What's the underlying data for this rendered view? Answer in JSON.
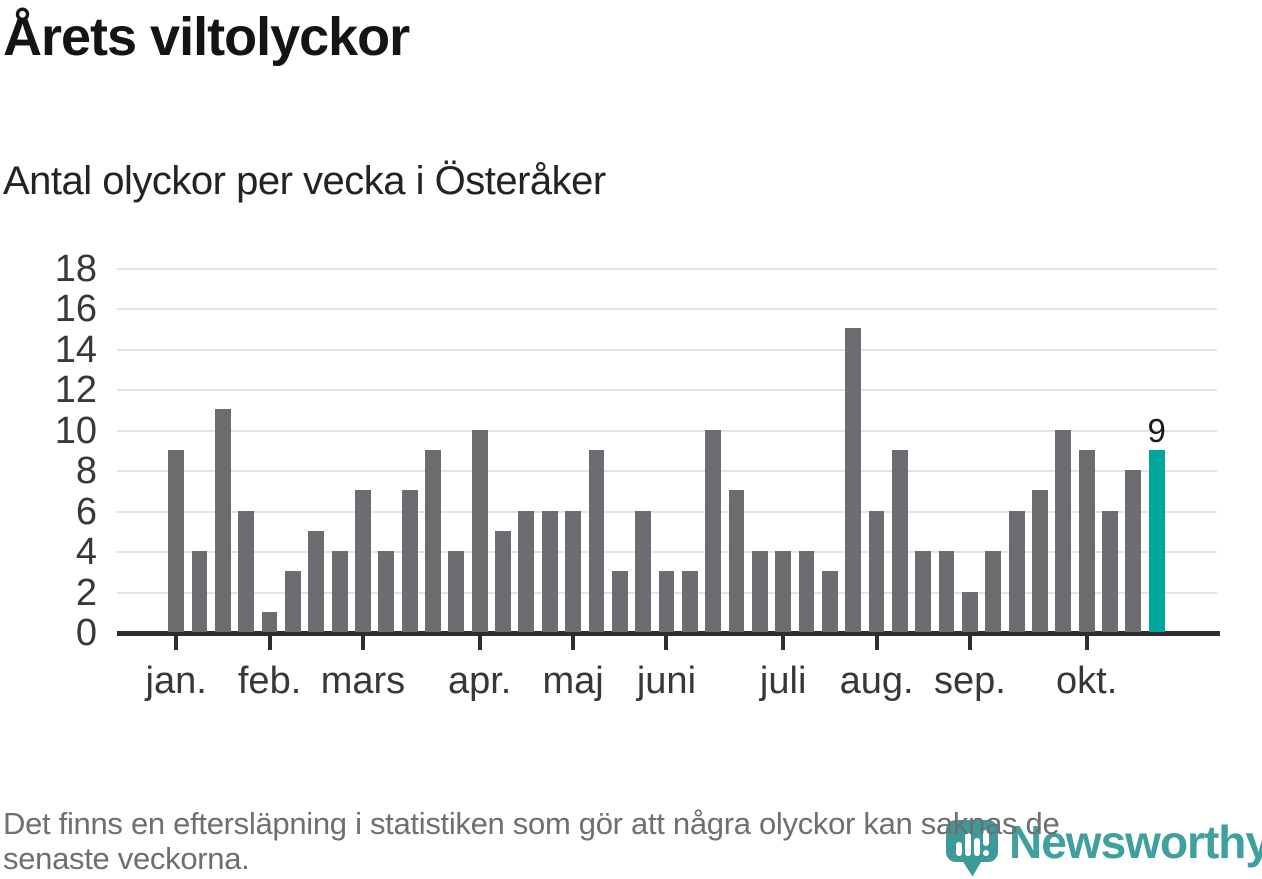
{
  "header": {
    "title": "Årets viltolyckor",
    "subtitle": "Antal olyckor per vecka i Österåker"
  },
  "chart_data": {
    "type": "bar",
    "title": "Årets viltolyckor",
    "subtitle": "Antal olyckor per vecka i Österåker",
    "x_unit": "vecka",
    "weeks": [
      1,
      2,
      3,
      4,
      5,
      6,
      7,
      8,
      9,
      10,
      11,
      12,
      13,
      14,
      15,
      16,
      17,
      18,
      19,
      20,
      21,
      22,
      23,
      24,
      25,
      26,
      27,
      28,
      29,
      30,
      31,
      32,
      33,
      34,
      35,
      36,
      37,
      38,
      39,
      40,
      41,
      42,
      43
    ],
    "values": [
      9,
      4,
      11,
      6,
      1,
      3,
      5,
      4,
      7,
      4,
      7,
      9,
      4,
      10,
      5,
      6,
      6,
      6,
      9,
      3,
      6,
      3,
      3,
      10,
      7,
      4,
      4,
      4,
      3,
      15,
      6,
      9,
      4,
      4,
      2,
      4,
      6,
      7,
      10,
      9,
      6,
      8,
      9
    ],
    "ylim": [
      0,
      18
    ],
    "y_ticks": [
      0,
      2,
      4,
      6,
      8,
      10,
      12,
      14,
      16,
      18
    ],
    "grid": true,
    "legend": "none",
    "month_ticks": [
      {
        "label": "jan.",
        "week": 1
      },
      {
        "label": "feb.",
        "week": 5
      },
      {
        "label": "mars",
        "week": 9
      },
      {
        "label": "apr.",
        "week": 14
      },
      {
        "label": "maj",
        "week": 18
      },
      {
        "label": "juni",
        "week": 22
      },
      {
        "label": "juli",
        "week": 27
      },
      {
        "label": "aug.",
        "week": 31
      },
      {
        "label": "sep.",
        "week": 35
      },
      {
        "label": "okt.",
        "week": 40
      }
    ],
    "highlight": {
      "index": 42,
      "value": 9,
      "label": "9",
      "color": "#00a69c"
    },
    "bar_color": "#6c6c71",
    "axis_color": "#2e2e2e",
    "grid_color": "#e3e3e3",
    "label_color": "#383838"
  },
  "footer": {
    "lines": [
      "Det finns en eftersläpning i statistiken som gör att några olyckor kan saknas de",
      "senaste veckorna."
    ]
  },
  "logo": {
    "text": "Newsworthy",
    "pin_color": "#3e9a98",
    "text_color": "#3fa09d"
  }
}
